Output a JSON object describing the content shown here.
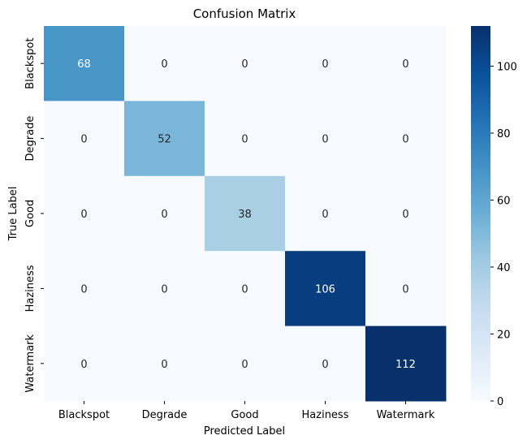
{
  "chart_data": {
    "type": "heatmap",
    "title": "Confusion Matrix",
    "xlabel": "Predicted Label",
    "ylabel": "True Label",
    "x_categories": [
      "Blackspot",
      "Degrade",
      "Good",
      "Haziness",
      "Watermark"
    ],
    "y_categories": [
      "Blackspot",
      "Degrade",
      "Good",
      "Haziness",
      "Watermark"
    ],
    "values": [
      [
        68,
        0,
        0,
        0,
        0
      ],
      [
        0,
        52,
        0,
        0,
        0
      ],
      [
        0,
        0,
        38,
        0,
        0
      ],
      [
        0,
        0,
        0,
        106,
        0
      ],
      [
        0,
        0,
        0,
        0,
        112
      ]
    ],
    "colormap": "Blues",
    "color_range": [
      0,
      112
    ],
    "colorbar_ticks": [
      0,
      20,
      40,
      60,
      80,
      100
    ],
    "grid": false,
    "annotations": true
  }
}
